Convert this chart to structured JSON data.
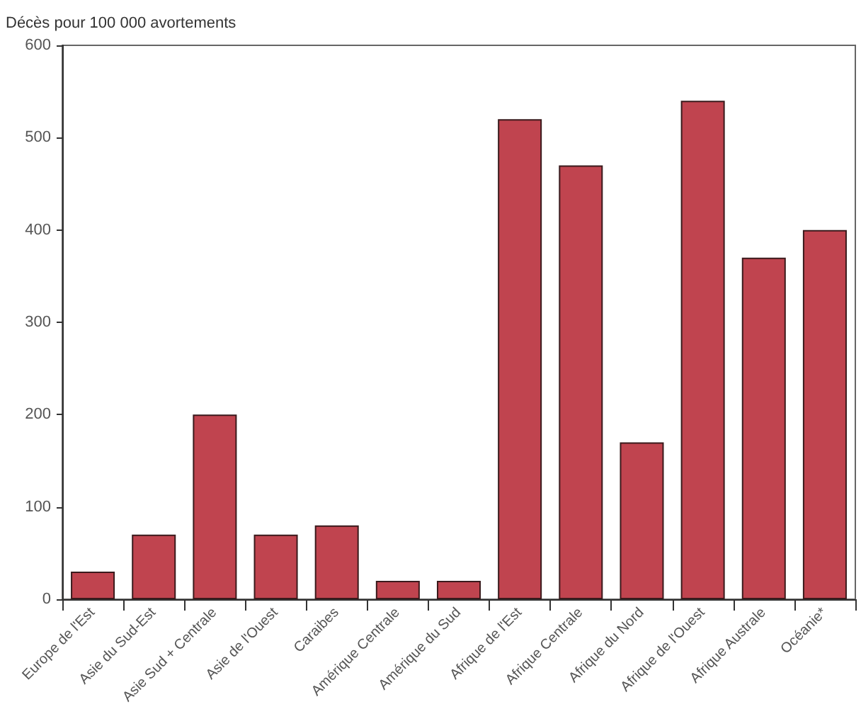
{
  "chart_data": {
    "type": "bar",
    "ylabel": "Décès pour 100 000 avortements",
    "categories": [
      "Europe de l'Est",
      "Asie du Sud-Est",
      "Asie Sud + Centrale",
      "Asie de l'Ouest",
      "Caraibes",
      "Amérique Centrale",
      "Amérique du Sud",
      "Afrique de l'Est",
      "Afrique Centrale",
      "Afrique du Nord",
      "Afrique de l'Ouest",
      "Afrique Australe",
      "Océanie*"
    ],
    "values": [
      30,
      70,
      200,
      70,
      80,
      20,
      20,
      520,
      470,
      170,
      540,
      370,
      400
    ],
    "color": "#c0444f",
    "ylim": [
      0,
      600
    ],
    "yticks": [
      0,
      100,
      200,
      300,
      400,
      500,
      600
    ],
    "grid": false
  }
}
